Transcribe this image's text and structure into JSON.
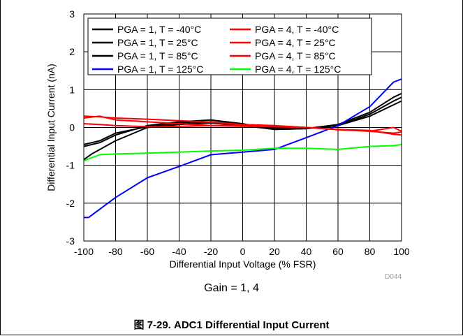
{
  "chart_data": {
    "type": "line",
    "xlabel": "Differential Input Voltage (% FSR)",
    "ylabel": "Differential Input Current (nA)",
    "xlim": [
      -100,
      100
    ],
    "ylim": [
      -3,
      3
    ],
    "xticks": [
      -100,
      -80,
      -60,
      -40,
      -20,
      0,
      20,
      40,
      60,
      80,
      100
    ],
    "yticks": [
      -3,
      -2,
      -1,
      0,
      1,
      2,
      3
    ],
    "grid": true,
    "legend_position": "top",
    "code": "D044",
    "series": [
      {
        "name": "PGA = 1, T = -40°C",
        "color": "#000000",
        "x": [
          -100,
          -90,
          -80,
          -60,
          -40,
          -20,
          0,
          20,
          40,
          60,
          80,
          95,
          100
        ],
        "y": [
          -0.5,
          -0.4,
          -0.2,
          0.05,
          0.15,
          0.2,
          0.1,
          -0.05,
          -0.03,
          0.05,
          0.3,
          0.6,
          0.7
        ]
      },
      {
        "name": "PGA = 1, T = 25°C",
        "color": "#000000",
        "x": [
          -100,
          -90,
          -80,
          -60,
          -40,
          -20,
          0,
          20,
          40,
          60,
          80,
          95,
          100
        ],
        "y": [
          -0.45,
          -0.35,
          -0.15,
          0.02,
          0.12,
          0.15,
          0.08,
          -0.03,
          -0.02,
          0.05,
          0.35,
          0.7,
          0.8
        ]
      },
      {
        "name": "PGA = 1, T = 85°C",
        "color": "#000000",
        "x": [
          -100,
          -95,
          -80,
          -60,
          -40,
          -20,
          0,
          20,
          40,
          60,
          80,
          95,
          100
        ],
        "y": [
          -0.85,
          -0.7,
          -0.35,
          0.0,
          0.08,
          0.12,
          0.05,
          -0.05,
          -0.03,
          0.08,
          0.4,
          0.8,
          0.9
        ]
      },
      {
        "name": "PGA = 1, T = 125°C",
        "color": "#0000ff",
        "x": [
          -100,
          -97,
          -80,
          -60,
          -40,
          -20,
          0,
          20,
          40,
          60,
          80,
          95,
          100
        ],
        "y": [
          -2.38,
          -2.38,
          -1.85,
          -1.33,
          -1.03,
          -0.72,
          -0.65,
          -0.58,
          -0.27,
          0.05,
          0.55,
          1.2,
          1.28
        ]
      },
      {
        "name": "PGA = 4, T = -40°C",
        "color": "#ff0000",
        "x": [
          -100,
          -90,
          -80,
          -60,
          -40,
          -20,
          0,
          20,
          40,
          60,
          80,
          95,
          100
        ],
        "y": [
          0.3,
          0.28,
          0.25,
          0.22,
          0.18,
          0.14,
          0.08,
          0.05,
          0.0,
          -0.05,
          -0.1,
          -0.15,
          -0.12
        ]
      },
      {
        "name": "PGA = 4, T = 25°C",
        "color": "#ff0000",
        "x": [
          -100,
          -90,
          -80,
          -60,
          -40,
          -20,
          0,
          20,
          40,
          60,
          80,
          95,
          100
        ],
        "y": [
          0.25,
          0.3,
          0.2,
          0.15,
          0.1,
          0.05,
          0.03,
          0.02,
          0.0,
          -0.05,
          -0.08,
          -0.18,
          -0.2
        ]
      },
      {
        "name": "PGA = 4, T = 85°C",
        "color": "#ff0000",
        "x": [
          -100,
          -90,
          -80,
          -60,
          -40,
          -20,
          0,
          20,
          40,
          60,
          80,
          95,
          100
        ],
        "y": [
          0.1,
          0.08,
          0.05,
          0.02,
          0.03,
          0.05,
          0.06,
          0.04,
          0.0,
          -0.06,
          -0.1,
          0.0,
          -0.1
        ]
      },
      {
        "name": "PGA = 4, T = 125°C",
        "color": "#00ff00",
        "x": [
          -100,
          -95,
          -90,
          -80,
          -60,
          -40,
          -20,
          0,
          20,
          40,
          60,
          80,
          95,
          100
        ],
        "y": [
          -0.88,
          -0.8,
          -0.72,
          -0.7,
          -0.68,
          -0.65,
          -0.62,
          -0.6,
          -0.55,
          -0.55,
          -0.58,
          -0.5,
          -0.48,
          -0.45
        ]
      }
    ]
  },
  "caption": {
    "gain_note": "Gain = 1, 4",
    "figure": "图 7-29. ADC1 Differential Input Current"
  }
}
